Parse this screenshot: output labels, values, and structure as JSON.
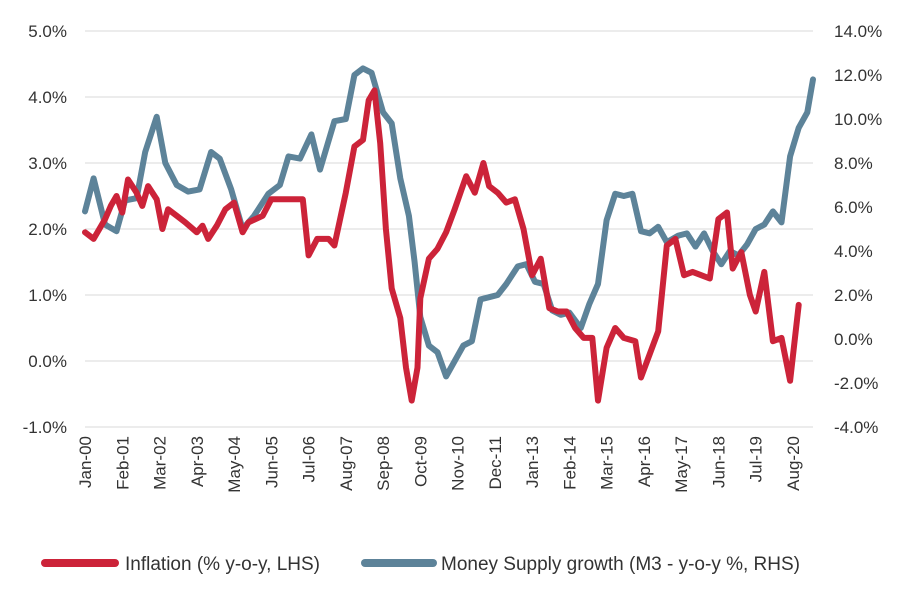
{
  "chart_data": {
    "type": "line",
    "title": "",
    "xlabel": "",
    "grid": "horizontal",
    "legend_position": "bottom",
    "x_tick_labels": [
      "Jan-00",
      "Feb-01",
      "Mar-02",
      "Apr-03",
      "May-04",
      "Jun-05",
      "Jul-06",
      "Aug-07",
      "Sep-08",
      "Oct-09",
      "Nov-10",
      "Dec-11",
      "Jan-13",
      "Feb-14",
      "Mar-15",
      "Apr-16",
      "May-17",
      "Jun-18",
      "Jul-19",
      "Aug-20"
    ],
    "x_range": [
      "Jan-00",
      "Mar-21"
    ],
    "left_axis": {
      "ylim": [
        -1.0,
        5.0
      ],
      "ticks": [
        "-1.0%",
        "0.0%",
        "1.0%",
        "2.0%",
        "3.0%",
        "4.0%",
        "5.0%"
      ]
    },
    "right_axis": {
      "ylim": [
        -4.0,
        14.0
      ],
      "ticks": [
        "-4.0%",
        "-2.0%",
        "0.0%",
        "2.0%",
        "4.0%",
        "6.0%",
        "8.0%",
        "10.0%",
        "12.0%",
        "14.0%"
      ]
    },
    "series": [
      {
        "name": "Inflation (% y-o-y, LHS)",
        "axis": "left",
        "color": "#cc2339",
        "points": [
          [
            "Jan-00",
            1.95
          ],
          [
            "Apr-00",
            1.85
          ],
          [
            "Aug-00",
            2.15
          ],
          [
            "Oct-00",
            2.35
          ],
          [
            "Dec-00",
            2.5
          ],
          [
            "Feb-01",
            2.25
          ],
          [
            "Apr-01",
            2.75
          ],
          [
            "Jul-01",
            2.55
          ],
          [
            "Sep-01",
            2.35
          ],
          [
            "Nov-01",
            2.65
          ],
          [
            "Feb-02",
            2.45
          ],
          [
            "Apr-02",
            2.0
          ],
          [
            "Jun-02",
            2.3
          ],
          [
            "Sep-02",
            2.2
          ],
          [
            "Dec-02",
            2.1
          ],
          [
            "Apr-03",
            1.95
          ],
          [
            "Jun-03",
            2.05
          ],
          [
            "Aug-03",
            1.85
          ],
          [
            "Nov-03",
            2.05
          ],
          [
            "Feb-04",
            2.3
          ],
          [
            "May-04",
            2.4
          ],
          [
            "Aug-04",
            1.95
          ],
          [
            "Oct-04",
            2.1
          ],
          [
            "Mar-05",
            2.2
          ],
          [
            "Jun-05",
            2.45
          ],
          [
            "Nov-05",
            2.45
          ],
          [
            "May-06",
            2.45
          ],
          [
            "Jul-06",
            1.6
          ],
          [
            "Oct-06",
            1.85
          ],
          [
            "Feb-07",
            1.85
          ],
          [
            "Apr-07",
            1.75
          ],
          [
            "Aug-07",
            2.55
          ],
          [
            "Nov-07",
            3.25
          ],
          [
            "Feb-08",
            3.35
          ],
          [
            "Apr-08",
            3.95
          ],
          [
            "Jun-08",
            4.1
          ],
          [
            "Aug-08",
            3.3
          ],
          [
            "Oct-08",
            2.0
          ],
          [
            "Dec-08",
            1.1
          ],
          [
            "Mar-09",
            0.65
          ],
          [
            "May-09",
            -0.1
          ],
          [
            "Jul-09",
            -0.6
          ],
          [
            "Sep-09",
            -0.1
          ],
          [
            "Oct-09",
            0.95
          ],
          [
            "Jan-10",
            1.55
          ],
          [
            "Apr-10",
            1.7
          ],
          [
            "Jul-10",
            1.95
          ],
          [
            "Oct-10",
            2.3
          ],
          [
            "Feb-11",
            2.8
          ],
          [
            "May-11",
            2.55
          ],
          [
            "Aug-11",
            3.0
          ],
          [
            "Oct-11",
            2.65
          ],
          [
            "Jan-12",
            2.55
          ],
          [
            "Apr-12",
            2.4
          ],
          [
            "Jul-12",
            2.45
          ],
          [
            "Oct-12",
            2.0
          ],
          [
            "Jan-13",
            1.3
          ],
          [
            "Apr-13",
            1.55
          ],
          [
            "Jul-13",
            0.8
          ],
          [
            "Oct-13",
            0.75
          ],
          [
            "Jan-14",
            0.75
          ],
          [
            "Apr-14",
            0.5
          ],
          [
            "Jul-14",
            0.35
          ],
          [
            "Oct-14",
            0.35
          ],
          [
            "Dec-14",
            -0.6
          ],
          [
            "Mar-15",
            0.2
          ],
          [
            "Jun-15",
            0.5
          ],
          [
            "Sep-15",
            0.35
          ],
          [
            "Jan-16",
            0.3
          ],
          [
            "Mar-16",
            -0.25
          ],
          [
            "Jun-16",
            0.1
          ],
          [
            "Sep-16",
            0.45
          ],
          [
            "Dec-16",
            1.75
          ],
          [
            "Mar-17",
            1.85
          ],
          [
            "Jun-17",
            1.3
          ],
          [
            "Sep-17",
            1.35
          ],
          [
            "Dec-17",
            1.3
          ],
          [
            "Mar-18",
            1.25
          ],
          [
            "Jun-18",
            2.15
          ],
          [
            "Sep-18",
            2.25
          ],
          [
            "Nov-18",
            1.4
          ],
          [
            "Feb-19",
            1.65
          ],
          [
            "May-19",
            1.0
          ],
          [
            "Jul-19",
            0.75
          ],
          [
            "Oct-19",
            1.35
          ],
          [
            "Jan-20",
            0.3
          ],
          [
            "Apr-20",
            0.35
          ],
          [
            "Jul-20",
            -0.3
          ],
          [
            "Oct-20",
            0.85
          ]
        ]
      },
      {
        "name": "Money Supply growth (M3 - y-o-y %, RHS)",
        "axis": "right",
        "color": "#5d8399",
        "points": [
          [
            "Jan-00",
            5.8
          ],
          [
            "Apr-00",
            7.3
          ],
          [
            "Aug-00",
            5.2
          ],
          [
            "Dec-00",
            4.9
          ],
          [
            "Mar-01",
            6.3
          ],
          [
            "Jul-01",
            6.4
          ],
          [
            "Oct-01",
            8.5
          ],
          [
            "Feb-02",
            10.1
          ],
          [
            "May-02",
            8.0
          ],
          [
            "Sep-02",
            7.0
          ],
          [
            "Jan-03",
            6.7
          ],
          [
            "May-03",
            6.8
          ],
          [
            "Sep-03",
            8.5
          ],
          [
            "Dec-03",
            8.2
          ],
          [
            "Apr-04",
            6.8
          ],
          [
            "Aug-04",
            5.0
          ],
          [
            "Dec-04",
            5.6
          ],
          [
            "May-05",
            6.6
          ],
          [
            "Sep-05",
            7.0
          ],
          [
            "Dec-05",
            8.3
          ],
          [
            "Apr-06",
            8.2
          ],
          [
            "Aug-06",
            9.3
          ],
          [
            "Nov-06",
            7.7
          ],
          [
            "Apr-07",
            9.9
          ],
          [
            "Aug-07",
            10.0
          ],
          [
            "Nov-07",
            12.0
          ],
          [
            "Feb-08",
            12.3
          ],
          [
            "May-08",
            12.1
          ],
          [
            "Sep-08",
            10.3
          ],
          [
            "Dec-08",
            9.8
          ],
          [
            "Mar-09",
            7.3
          ],
          [
            "Jun-09",
            5.6
          ],
          [
            "Aug-09",
            3.5
          ],
          [
            "Oct-09",
            1.0
          ],
          [
            "Jan-10",
            -0.3
          ],
          [
            "Apr-10",
            -0.6
          ],
          [
            "Jul-10",
            -1.7
          ],
          [
            "Oct-10",
            -1.0
          ],
          [
            "Jan-11",
            -0.3
          ],
          [
            "Apr-11",
            -0.1
          ],
          [
            "Jul-11",
            1.8
          ],
          [
            "Oct-11",
            1.9
          ],
          [
            "Jan-12",
            2.0
          ],
          [
            "Apr-12",
            2.5
          ],
          [
            "Aug-12",
            3.3
          ],
          [
            "Nov-12",
            3.4
          ],
          [
            "Feb-13",
            2.6
          ],
          [
            "May-13",
            2.5
          ],
          [
            "Aug-13",
            1.3
          ],
          [
            "Nov-13",
            1.1
          ],
          [
            "Feb-14",
            1.2
          ],
          [
            "Jun-14",
            0.5
          ],
          [
            "Sep-14",
            1.6
          ],
          [
            "Dec-14",
            2.5
          ],
          [
            "Mar-15",
            5.4
          ],
          [
            "Jun-15",
            6.6
          ],
          [
            "Sep-15",
            6.5
          ],
          [
            "Dec-15",
            6.6
          ],
          [
            "Mar-16",
            4.9
          ],
          [
            "Jun-16",
            4.8
          ],
          [
            "Sep-16",
            5.1
          ],
          [
            "Dec-16",
            4.4
          ],
          [
            "Apr-17",
            4.7
          ],
          [
            "Jul-17",
            4.8
          ],
          [
            "Oct-17",
            4.2
          ],
          [
            "Jan-18",
            4.8
          ],
          [
            "Apr-18",
            4.0
          ],
          [
            "Jul-18",
            3.4
          ],
          [
            "Oct-18",
            4.0
          ],
          [
            "Jan-19",
            3.8
          ],
          [
            "Apr-19",
            4.3
          ],
          [
            "Jul-19",
            5.0
          ],
          [
            "Oct-19",
            5.2
          ],
          [
            "Jan-20",
            5.8
          ],
          [
            "Apr-20",
            5.3
          ],
          [
            "Jul-20",
            8.3
          ],
          [
            "Oct-20",
            9.6
          ],
          [
            "Jan-21",
            10.3
          ],
          [
            "Mar-21",
            11.8
          ]
        ]
      }
    ]
  }
}
